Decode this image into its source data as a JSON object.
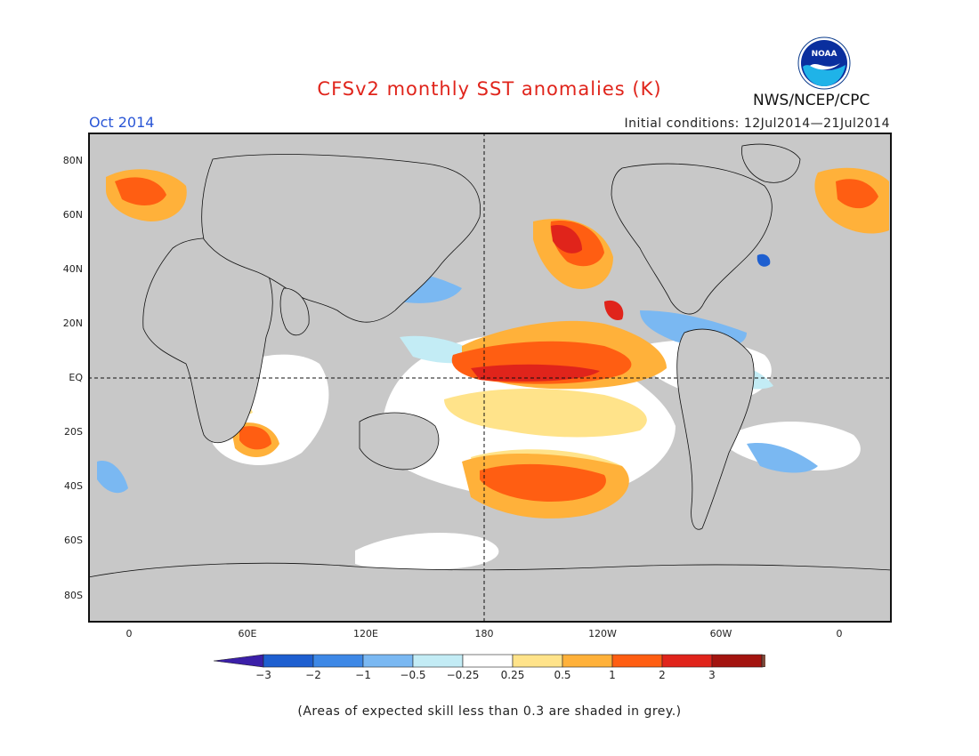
{
  "title": "CFSv2 monthly SST anomalies (K)",
  "month": "Oct 2014",
  "initial_conditions": "Initial conditions: 12Jul2014—21Jul2014",
  "agency": "NWS/NCEP/CPC",
  "logo_text": "NOAA",
  "footnote": "(Areas of expected skill less than 0.3 are shaded in grey.)",
  "lat_labels": [
    "80N",
    "60N",
    "40N",
    "20N",
    "EQ",
    "20S",
    "40S",
    "60S",
    "80S"
  ],
  "lon_labels": [
    "0",
    "60E",
    "120E",
    "180",
    "120W",
    "60W",
    "0"
  ],
  "colorbar": {
    "labels": [
      "−3",
      "−2",
      "−1",
      "−0.5",
      "−0.25",
      "0.25",
      "0.5",
      "1",
      "2",
      "3"
    ],
    "colors": [
      "#3b1fa8",
      "#1e5fd0",
      "#3d88e6",
      "#7ab8f2",
      "#c3ecf5",
      "#ffffff",
      "#ffe38a",
      "#ffb13a",
      "#ff5e12",
      "#e0241b",
      "#a3140f",
      "#7b4a3a"
    ]
  },
  "colors": {
    "title": "#e0241b",
    "month": "#2a56d6",
    "skill_grey": "#c8c8c8",
    "ocean_neutral": "#ffffff"
  }
}
